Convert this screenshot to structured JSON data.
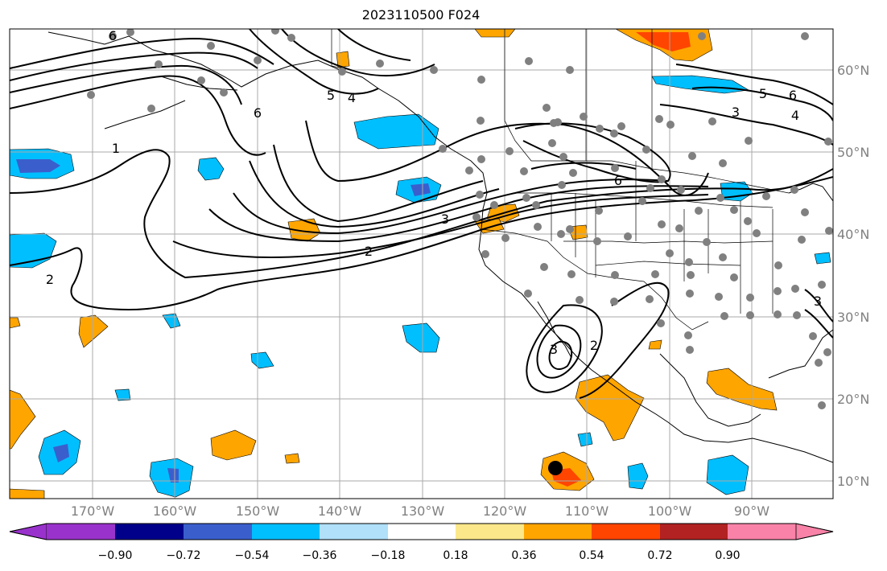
{
  "title": "2023110500 F024",
  "map": {
    "lon_range": [
      -180,
      -80
    ],
    "lat_range": [
      8,
      65
    ],
    "lon_ticks": [
      "170°W",
      "160°W",
      "150°W",
      "140°W",
      "130°W",
      "120°W",
      "110°W",
      "100°W",
      "90°W"
    ],
    "lat_ticks": [
      "60°N",
      "50°N",
      "40°N",
      "30°N",
      "20°N",
      "10°N"
    ],
    "grid": true,
    "contour_labels": [
      "1",
      "2",
      "2",
      "3",
      "3",
      "4",
      "5",
      "6",
      "6",
      "6",
      "3",
      "4",
      "5",
      "6",
      "2",
      "3"
    ]
  },
  "colorbar": {
    "ticks": [
      "−0.90",
      "−0.72",
      "−0.54",
      "−0.36",
      "−0.18",
      "0.18",
      "0.36",
      "0.54",
      "0.72",
      "0.90"
    ],
    "colors": [
      "#9932cc",
      "#00008b",
      "#3a5fcd",
      "#00bfff",
      "#b0e0fa",
      "#ffffff",
      "#fbe88a",
      "#ffa500",
      "#ff4500",
      "#b22222",
      "#f882a8"
    ]
  },
  "colors": {
    "blue": "#00bfff",
    "deep_blue": "#3a5fcd",
    "orange": "#ffa500",
    "red": "#ff4500",
    "station": "#808080",
    "marker": "#000000"
  }
}
